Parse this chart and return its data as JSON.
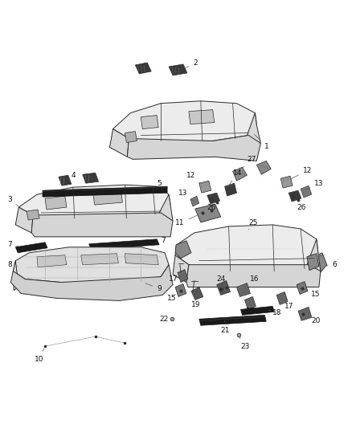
{
  "bg_color": "#ffffff",
  "fig_width": 4.38,
  "fig_height": 5.33,
  "dpi": 100,
  "line_color": "#2a2a2a",
  "fill_light": "#f0f0f0",
  "fill_mid": "#d8d8d8",
  "fill_dark": "#b0b0b0",
  "fill_black": "#3a3a3a",
  "label_fontsize": 6.5,
  "label_color": "#111111",
  "callout_color": "#555555"
}
